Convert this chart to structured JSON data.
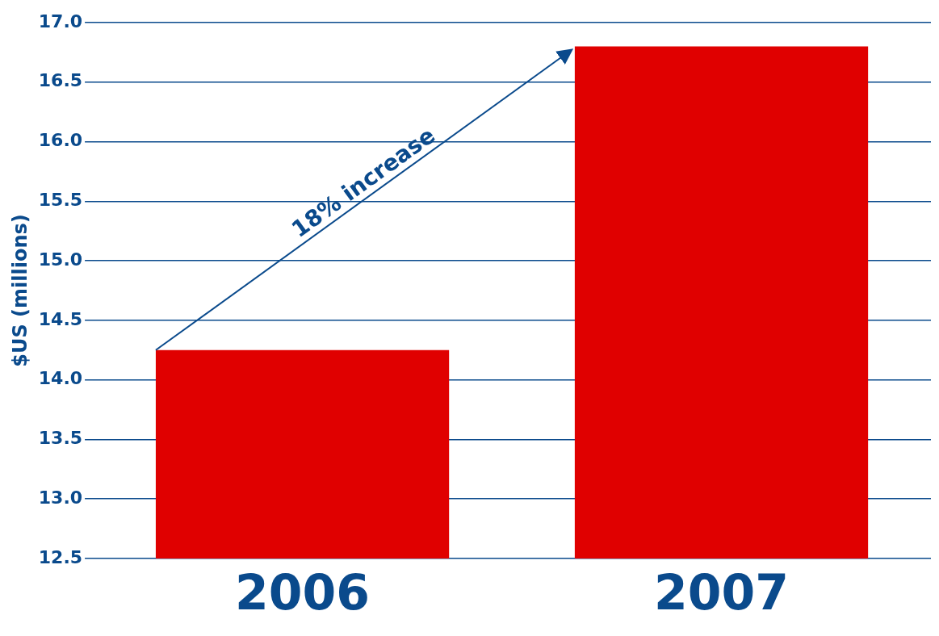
{
  "chart_data": {
    "type": "bar",
    "ylabel": "$US (millions)",
    "categories": [
      "2006",
      "2007"
    ],
    "values": [
      14.25,
      16.8
    ],
    "color": "#e00000",
    "ylim": [
      12.5,
      17.0
    ],
    "yticks": [
      {
        "value": 12.5,
        "label": "12.5"
      },
      {
        "value": 13,
        "label": "13.0"
      },
      {
        "value": 13.5,
        "label": "13.5"
      },
      {
        "value": 14,
        "label": "14.0"
      },
      {
        "value": 14.5,
        "label": "14.5"
      },
      {
        "value": 15,
        "label": "15.0"
      },
      {
        "value": 15.5,
        "label": "15.5"
      },
      {
        "value": 16,
        "label": "16.0"
      },
      {
        "value": 16.5,
        "label": "16.5"
      },
      {
        "value": 17,
        "label": "17.0"
      }
    ],
    "grid": "y",
    "legend": false,
    "annotations": [
      "18% increase"
    ]
  }
}
